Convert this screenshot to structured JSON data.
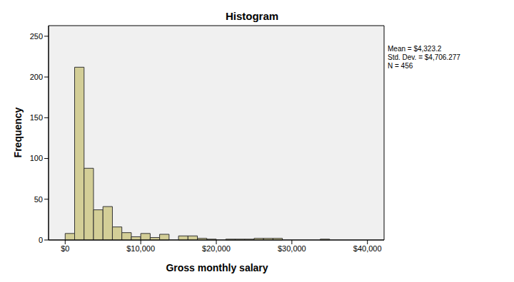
{
  "chart_data": {
    "type": "histogram",
    "title": "Histogram",
    "x_label": "Gross monthly salary",
    "y_label": "Frequency",
    "bins": [
      0,
      1250,
      2500,
      3750,
      5000,
      6250,
      7500,
      8750,
      10000,
      11250,
      12500,
      13750,
      15000,
      16250,
      17500,
      18750,
      20000,
      21250,
      22500,
      23750,
      25000,
      26250,
      27500,
      28750,
      30000,
      31250,
      32500,
      33750,
      35000
    ],
    "values": [
      8,
      212,
      88,
      37,
      41,
      16,
      9,
      4,
      8,
      3,
      7,
      0,
      5,
      5,
      2,
      1,
      0,
      1,
      1,
      1,
      2,
      2,
      2,
      0,
      0,
      0,
      0,
      1
    ],
    "color": "#d3ce97",
    "xlim": [
      -2200,
      42200
    ],
    "ylim": [
      0,
      263
    ],
    "xticks": [
      {
        "value": 0,
        "label": "$0"
      },
      {
        "value": 10000,
        "label": "$10,000"
      },
      {
        "value": 20000,
        "label": "$20,000"
      },
      {
        "value": 30000,
        "label": "$30,000"
      },
      {
        "value": 40000,
        "label": "$40,000"
      }
    ],
    "yticks": [
      0,
      50,
      100,
      150,
      200,
      250
    ],
    "grid": false,
    "annotations": [
      "Mean = $4,323.2",
      "Std. Dev. = $4,706.277",
      "N = 456"
    ]
  }
}
